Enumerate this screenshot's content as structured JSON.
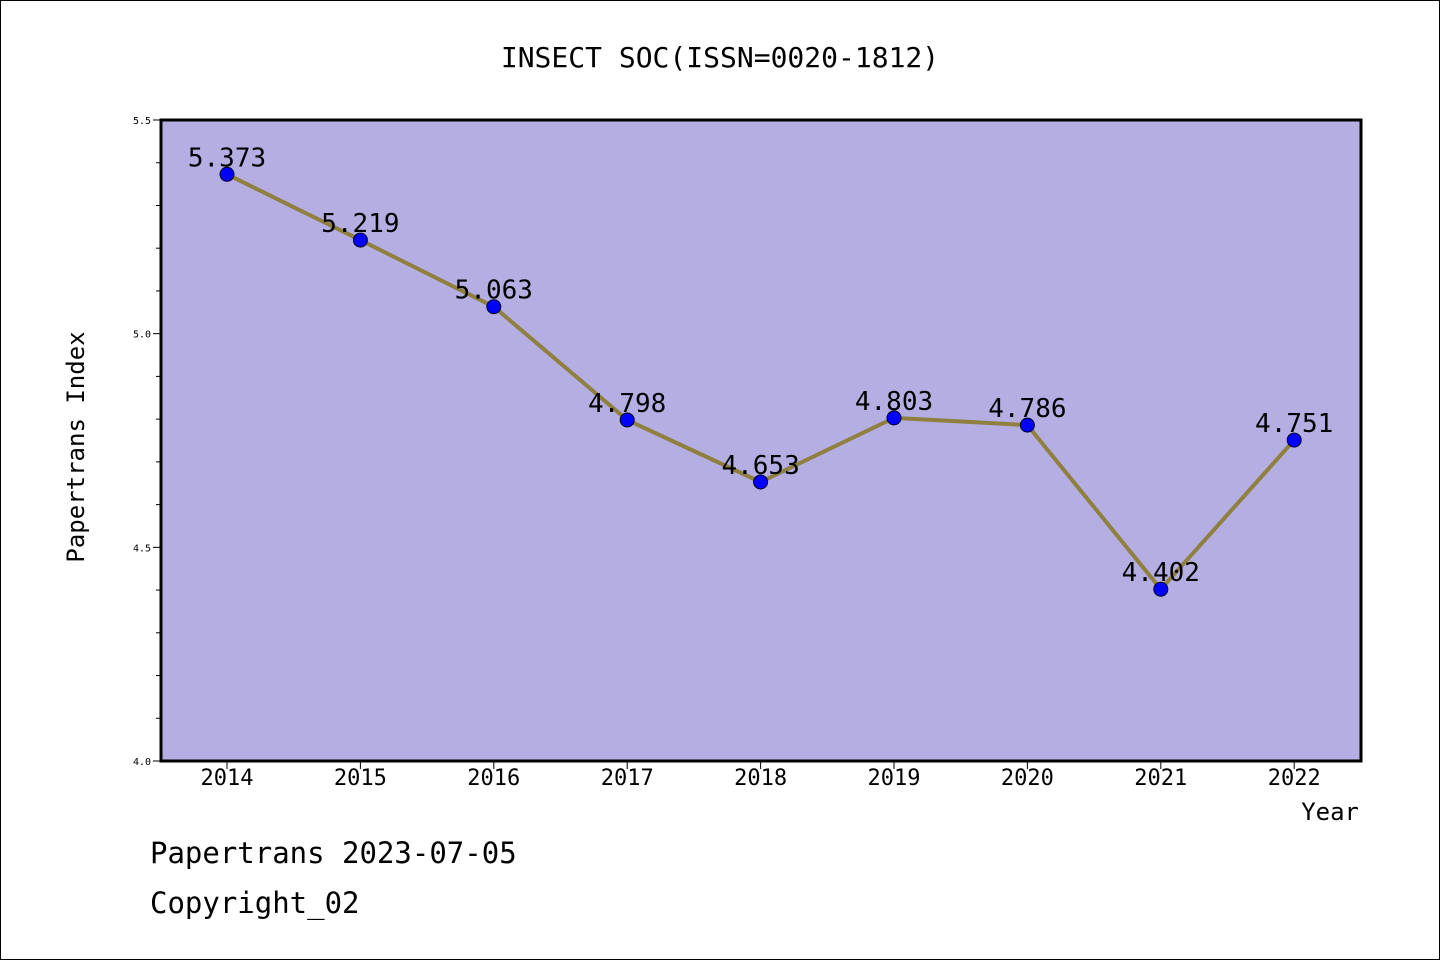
{
  "chart_data": {
    "type": "line",
    "title": "INSECT SOC(ISSN=0020-1812)",
    "xlabel": "Year",
    "ylabel": "Papertrans Index",
    "categories": [
      "2014",
      "2015",
      "2016",
      "2017",
      "2018",
      "2019",
      "2020",
      "2021",
      "2022"
    ],
    "series": [
      {
        "values": [
          5.373,
          5.219,
          5.063,
          4.798,
          4.653,
          4.803,
          4.786,
          4.402,
          4.751
        ]
      }
    ],
    "data_labels": [
      "5.373",
      "5.219",
      "5.063",
      "4.798",
      "4.653",
      "4.803",
      "4.786",
      "4.402",
      "4.751"
    ],
    "ylim": [
      4.0,
      5.5
    ],
    "yticks": [
      "4.0",
      "4.5",
      "5.0",
      "5.5"
    ],
    "grid": false,
    "colors": {
      "plot_background": "#b4aee2",
      "line": "#8f8040",
      "marker": "#0000ff"
    }
  },
  "footer": {
    "line1": "Papertrans 2023-07-05",
    "line2": "Copyright_02"
  }
}
